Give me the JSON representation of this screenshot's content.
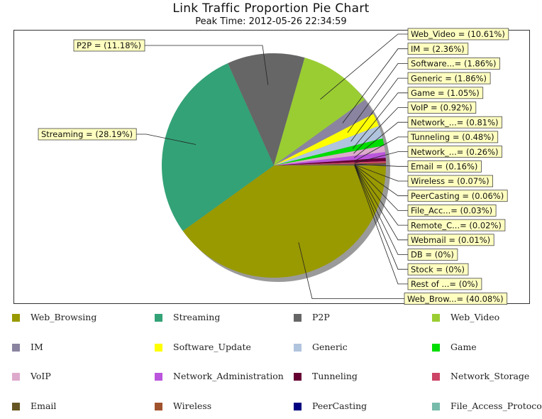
{
  "chart_data": {
    "type": "pie",
    "title": "Link Traffic Proportion Pie Chart",
    "subtitle": "Peak Time: 2012-05-26 22:34:59",
    "slices": [
      {
        "name": "Web_Browsing",
        "label": "Web_Brow...= (40.08%)",
        "value": 40.08,
        "color": "#999900"
      },
      {
        "name": "Streaming",
        "label": "Streaming = (28.19%)",
        "value": 28.19,
        "color": "#33a277"
      },
      {
        "name": "P2P",
        "label": "P2P = (11.18%)",
        "value": 11.18,
        "color": "#666666"
      },
      {
        "name": "Web_Video",
        "label": "Web_Video = (10.61%)",
        "value": 10.61,
        "color": "#9acd32"
      },
      {
        "name": "IM",
        "label": "IM = (2.36%)",
        "value": 2.36,
        "color": "#8a84a0"
      },
      {
        "name": "Software_Update",
        "label": "Software...= (1.86%)",
        "value": 1.86,
        "color": "#ffff00"
      },
      {
        "name": "Generic",
        "label": "Generic = (1.86%)",
        "value": 1.86,
        "color": "#b0c4de"
      },
      {
        "name": "Game",
        "label": "Game = (1.05%)",
        "value": 1.05,
        "color": "#00dd00"
      },
      {
        "name": "VoIP",
        "label": "VoIP = (0.92%)",
        "value": 0.92,
        "color": "#ddaacc"
      },
      {
        "name": "Network_Administration",
        "label": "Network_...= (0.81%)",
        "value": 0.81,
        "color": "#bb55dd"
      },
      {
        "name": "Tunneling",
        "label": "Tunneling = (0.48%)",
        "value": 0.48,
        "color": "#660033"
      },
      {
        "name": "Network_Storage",
        "label": "Network_...= (0.26%)",
        "value": 0.26,
        "color": "#cc4466"
      },
      {
        "name": "Email",
        "label": "Email = (0.16%)",
        "value": 0.16,
        "color": "#665522"
      },
      {
        "name": "Wireless",
        "label": "Wireless = (0.07%)",
        "value": 0.07,
        "color": "#a0522d"
      },
      {
        "name": "PeerCasting",
        "label": "PeerCasting = (0.06%)",
        "value": 0.06,
        "color": "#000080"
      },
      {
        "name": "File_Access_Protocol",
        "label": "File_Acc...= (0.03%)",
        "value": 0.03,
        "color": "#77bbaa"
      },
      {
        "name": "Remote_C",
        "label": "Remote_C...= (0.02%)",
        "value": 0.02,
        "color": "#444444"
      },
      {
        "name": "Webmail",
        "label": "Webmail = (0.01%)",
        "value": 0.01,
        "color": "#555555"
      },
      {
        "name": "DB",
        "label": "DB = (0%)",
        "value": 0,
        "color": "#333333"
      },
      {
        "name": "Stock",
        "label": "Stock = (0%)",
        "value": 0,
        "color": "#222222"
      },
      {
        "name": "Rest of",
        "label": "Rest of ...= (0%)",
        "value": 0,
        "color": "#111111"
      }
    ],
    "legend": [
      {
        "label": "Web_Browsing",
        "color": "#999900"
      },
      {
        "label": "Streaming",
        "color": "#33a277"
      },
      {
        "label": "P2P",
        "color": "#666666"
      },
      {
        "label": "Web_Video",
        "color": "#9acd32"
      },
      {
        "label": "IM",
        "color": "#8a84a0"
      },
      {
        "label": "Software_Update",
        "color": "#ffff00"
      },
      {
        "label": "Generic",
        "color": "#b0c4de"
      },
      {
        "label": "Game",
        "color": "#00dd00"
      },
      {
        "label": "VoIP",
        "color": "#ddaacc"
      },
      {
        "label": "Network_Administration",
        "color": "#bb55dd"
      },
      {
        "label": "Tunneling",
        "color": "#660033"
      },
      {
        "label": "Network_Storage",
        "color": "#cc4466"
      },
      {
        "label": "Email",
        "color": "#665522"
      },
      {
        "label": "Wireless",
        "color": "#a0522d"
      },
      {
        "label": "PeerCasting",
        "color": "#000080"
      },
      {
        "label": "File_Access_Protocol",
        "color": "#77bbaa"
      }
    ],
    "legend_placement": "bottom"
  }
}
